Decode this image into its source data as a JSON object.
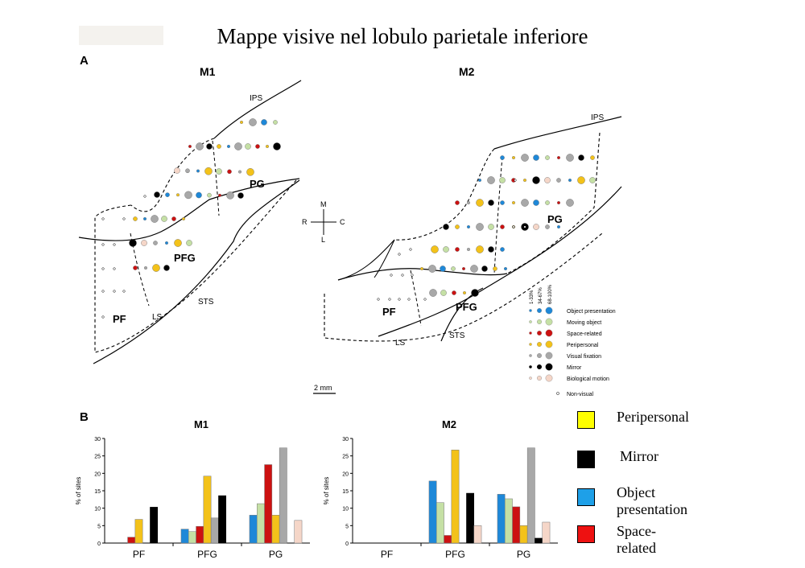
{
  "title": "Mappe visive nel lobulo parietale inferiore",
  "panel_a": {
    "label": "A",
    "m1": {
      "title": "M1",
      "labels": {
        "ips": "IPS",
        "pg": "PG",
        "pfg": "PFG",
        "pf": "PF",
        "ls": "LS",
        "sts": "STS"
      }
    },
    "m2": {
      "title": "M2",
      "labels": {
        "ips": "IPS",
        "pg": "PG",
        "pfg": "PFG",
        "pf": "PF",
        "ls": "LS",
        "sts": "STS"
      }
    },
    "compass": {
      "m": "M",
      "l": "L",
      "r": "R",
      "c": "C"
    },
    "scale": "2 mm",
    "legend": {
      "headers": [
        "1-33%",
        "34-67%",
        "68-100%"
      ],
      "items": [
        {
          "label": "Object presentation",
          "color": "#1e88d8"
        },
        {
          "label": "Moving object",
          "color": "#c5e0a5"
        },
        {
          "label": "Space-related",
          "color": "#cc1111"
        },
        {
          "label": "Peripersonal",
          "color": "#f3c21a"
        },
        {
          "label": "Visual fixation",
          "color": "#a8a8a8"
        },
        {
          "label": "Mirror",
          "color": "#000000"
        },
        {
          "label": "Biological motion",
          "color": "#f5d6c8"
        }
      ],
      "non_visual": "Non-visual"
    }
  },
  "panel_b": {
    "label": "B"
  },
  "big_legend": [
    {
      "label": "Peripersonal",
      "color": "#ffff00"
    },
    {
      "label": "Mirror",
      "color": "#000000"
    },
    {
      "label": "Object presentation",
      "color": "#1ea0e8"
    },
    {
      "label": "Space-related",
      "color": "#ee1111"
    }
  ],
  "chart_data": [
    {
      "type": "bar",
      "title": "M1",
      "ylabel": "% of sites",
      "ylim": [
        0,
        30
      ],
      "yticks": [
        0,
        5,
        10,
        15,
        20,
        25,
        30
      ],
      "categories": [
        "PF",
        "PFG",
        "PG"
      ],
      "series": [
        {
          "name": "Object presentation",
          "color": "#1e88d8",
          "values": [
            0,
            4,
            8
          ]
        },
        {
          "name": "Moving object",
          "color": "#c5e0a5",
          "values": [
            0,
            3.3,
            11.3
          ]
        },
        {
          "name": "Space-related",
          "color": "#cc1111",
          "values": [
            1.7,
            4.8,
            22.5
          ]
        },
        {
          "name": "Peripersonal",
          "color": "#f3c21a",
          "values": [
            6.8,
            19.2,
            8
          ]
        },
        {
          "name": "Visual fixation",
          "color": "#a8a8a8",
          "values": [
            0,
            7.2,
            27.3
          ]
        },
        {
          "name": "Mirror",
          "color": "#000000",
          "values": [
            10.3,
            13.6,
            0
          ]
        },
        {
          "name": "Biological motion",
          "color": "#f5d6c8",
          "values": [
            0,
            0,
            6.5
          ]
        }
      ]
    },
    {
      "type": "bar",
      "title": "M2",
      "ylabel": "% of sites",
      "ylim": [
        0,
        30
      ],
      "yticks": [
        0,
        5,
        10,
        15,
        20,
        25,
        30
      ],
      "categories": [
        "PF",
        "PFG",
        "PG"
      ],
      "series": [
        {
          "name": "Object presentation",
          "color": "#1e88d8",
          "values": [
            0,
            17.8,
            14
          ]
        },
        {
          "name": "Moving object",
          "color": "#c5e0a5",
          "values": [
            0,
            11.6,
            12.7
          ]
        },
        {
          "name": "Space-related",
          "color": "#cc1111",
          "values": [
            0,
            2.2,
            10.4
          ]
        },
        {
          "name": "Peripersonal",
          "color": "#f3c21a",
          "values": [
            0,
            26.7,
            5
          ]
        },
        {
          "name": "Visual fixation",
          "color": "#a8a8a8",
          "values": [
            0,
            0,
            27.3
          ]
        },
        {
          "name": "Mirror",
          "color": "#000000",
          "values": [
            0,
            14.3,
            1.4
          ]
        },
        {
          "name": "Biological motion",
          "color": "#f5d6c8",
          "values": [
            0,
            5,
            6
          ]
        }
      ]
    }
  ]
}
